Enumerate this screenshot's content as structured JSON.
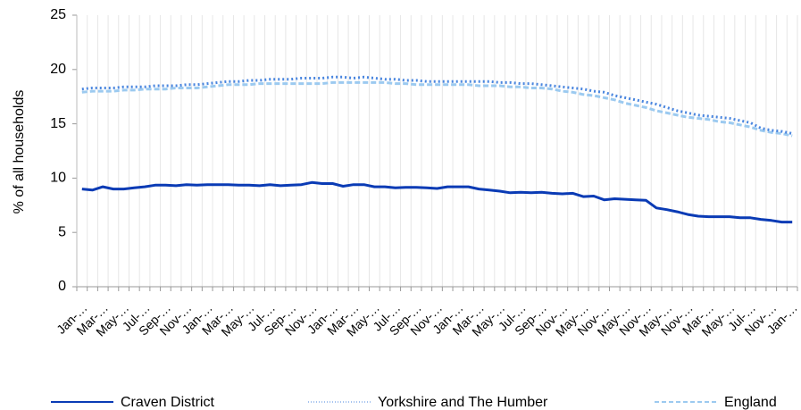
{
  "chart_data": {
    "type": "line",
    "ylabel": "% of all households",
    "categories": [
      "Jan-…",
      null,
      "Mar-…",
      null,
      "May-…",
      null,
      "Jul-…",
      null,
      "Sep-…",
      null,
      "Nov-…",
      null,
      "Jan-…",
      null,
      "Mar-…",
      null,
      "May-…",
      null,
      "Jul-…",
      null,
      "Sep-…",
      null,
      "Nov-…",
      null,
      "Jan-…",
      null,
      "Mar-…",
      null,
      "May-…",
      null,
      "Jul-…",
      null,
      "Sep-…",
      null,
      "Nov-…",
      null,
      "Jan-…",
      null,
      "Mar-…",
      null,
      "May-…",
      null,
      "Jul-…",
      null,
      "Sep-…",
      null,
      "Nov-…",
      null,
      "May-…",
      null,
      "Nov-…",
      null,
      "May-…",
      null,
      "Nov-…",
      null,
      "May-…",
      null,
      "Nov-…",
      null,
      "Mar-…",
      null,
      "May-…",
      null,
      "Jul-…",
      null,
      "Nov-…",
      null,
      "Jan-…"
    ],
    "series": [
      {
        "name": "Craven District",
        "color": "#0a3bb5",
        "style": "solid",
        "values": [
          9.0,
          8.9,
          9.2,
          9.0,
          9.0,
          9.1,
          9.2,
          9.35,
          9.35,
          9.3,
          9.4,
          9.35,
          9.4,
          9.4,
          9.4,
          9.35,
          9.35,
          9.3,
          9.4,
          9.3,
          9.35,
          9.4,
          9.6,
          9.5,
          9.5,
          9.25,
          9.4,
          9.4,
          9.2,
          9.2,
          9.1,
          9.15,
          9.15,
          9.1,
          9.05,
          9.2,
          9.2,
          9.2,
          9.0,
          8.9,
          8.8,
          8.65,
          8.7,
          8.65,
          8.7,
          8.6,
          8.55,
          8.6,
          8.3,
          8.35,
          8.0,
          8.1,
          8.05,
          8.0,
          7.95,
          7.25,
          7.1,
          6.9,
          6.65,
          6.5,
          6.45,
          6.45,
          6.45,
          6.35,
          6.35,
          6.2,
          6.1,
          5.95,
          5.95
        ]
      },
      {
        "name": "Yorkshire and The Humber",
        "color": "#4a86df",
        "style": "dotted",
        "values": [
          18.2,
          18.3,
          18.3,
          18.3,
          18.4,
          18.4,
          18.4,
          18.5,
          18.5,
          18.5,
          18.6,
          18.6,
          18.7,
          18.8,
          18.9,
          18.9,
          19.0,
          19.0,
          19.1,
          19.1,
          19.1,
          19.2,
          19.2,
          19.2,
          19.3,
          19.3,
          19.2,
          19.3,
          19.2,
          19.1,
          19.1,
          19.0,
          19.0,
          18.9,
          18.9,
          18.9,
          18.9,
          18.9,
          18.9,
          18.9,
          18.8,
          18.8,
          18.7,
          18.7,
          18.6,
          18.5,
          18.4,
          18.3,
          18.2,
          18.0,
          17.9,
          17.6,
          17.4,
          17.2,
          17.0,
          16.8,
          16.5,
          16.2,
          16.0,
          15.8,
          15.7,
          15.6,
          15.5,
          15.3,
          15.1,
          14.6,
          14.4,
          14.3,
          14.1
        ]
      },
      {
        "name": "England",
        "color": "#9ccaf0",
        "style": "dashed",
        "values": [
          17.9,
          18.0,
          18.0,
          18.0,
          18.1,
          18.1,
          18.2,
          18.2,
          18.2,
          18.3,
          18.3,
          18.3,
          18.4,
          18.5,
          18.6,
          18.6,
          18.6,
          18.7,
          18.7,
          18.7,
          18.7,
          18.7,
          18.7,
          18.7,
          18.8,
          18.8,
          18.8,
          18.8,
          18.8,
          18.8,
          18.7,
          18.7,
          18.6,
          18.6,
          18.6,
          18.6,
          18.6,
          18.6,
          18.5,
          18.5,
          18.5,
          18.4,
          18.4,
          18.3,
          18.3,
          18.2,
          18.0,
          17.9,
          17.7,
          17.6,
          17.4,
          17.2,
          16.9,
          16.7,
          16.5,
          16.2,
          16.0,
          15.8,
          15.6,
          15.5,
          15.4,
          15.2,
          15.1,
          14.9,
          14.7,
          14.4,
          14.2,
          14.1,
          13.9
        ]
      }
    ],
    "ylim": [
      0,
      25
    ],
    "yticks": [
      0,
      5,
      10,
      15,
      20,
      25
    ],
    "grid": true
  }
}
